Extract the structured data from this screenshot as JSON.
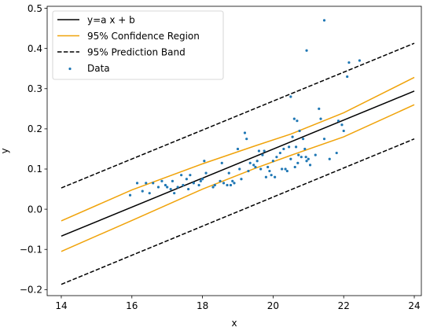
{
  "chart_data": {
    "type": "scatter",
    "title": "",
    "xlabel": "x",
    "ylabel": "y",
    "xlim": [
      13.6,
      24.2
    ],
    "ylim": [
      -0.215,
      0.505
    ],
    "xticks": [
      14,
      16,
      18,
      20,
      22,
      24
    ],
    "yticks": [
      -0.2,
      -0.1,
      0.0,
      0.1,
      0.2,
      0.3,
      0.4,
      0.5
    ],
    "xtick_labels": [
      "14",
      "16",
      "18",
      "20",
      "22",
      "24"
    ],
    "ytick_labels": [
      "−0.2",
      "−0.1",
      "0.0",
      "0.1",
      "0.2",
      "0.3",
      "0.4",
      "0.5"
    ],
    "grid": false,
    "legend_position": "upper-left",
    "colors": {
      "fit": "#000000",
      "confidence": "#f0a30a",
      "prediction": "#000000",
      "data": "#1f77b4"
    },
    "legend": [
      {
        "label": "y=a x + b",
        "style": "solid",
        "color": "#000000"
      },
      {
        "label": "95% Confidence Region",
        "style": "solid",
        "color": "#f0a30a"
      },
      {
        "label": "95% Prediction Band",
        "style": "dashed",
        "color": "#000000"
      },
      {
        "label": "Data",
        "style": "point",
        "color": "#1f77b4"
      }
    ],
    "fit_line": {
      "x": [
        14,
        24
      ],
      "y": [
        -0.067,
        0.294
      ]
    },
    "confidence_upper": {
      "x": [
        14,
        16,
        18,
        19.5,
        20.5,
        22,
        24
      ],
      "y": [
        -0.029,
        0.048,
        0.113,
        0.158,
        0.187,
        0.24,
        0.328
      ]
    },
    "confidence_lower": {
      "x": [
        14,
        16,
        18,
        19.5,
        20.5,
        22,
        24
      ],
      "y": [
        -0.105,
        -0.028,
        0.05,
        0.102,
        0.134,
        0.18,
        0.26
      ]
    },
    "prediction_upper": {
      "x": [
        14,
        24
      ],
      "y": [
        0.053,
        0.413
      ]
    },
    "prediction_lower": {
      "x": [
        14,
        24
      ],
      "y": [
        -0.187,
        0.175
      ]
    },
    "points": {
      "x": [
        15.95,
        16.15,
        16.3,
        16.4,
        16.5,
        16.6,
        16.75,
        16.85,
        16.95,
        17.0,
        17.1,
        17.15,
        17.2,
        17.3,
        17.4,
        17.45,
        17.55,
        17.6,
        17.65,
        17.75,
        17.9,
        17.95,
        18.0,
        18.05,
        18.1,
        18.3,
        18.35,
        18.5,
        18.55,
        18.6,
        18.7,
        18.75,
        18.8,
        18.85,
        18.9,
        19.0,
        19.05,
        19.1,
        19.2,
        19.25,
        19.3,
        19.35,
        19.45,
        19.5,
        19.55,
        19.6,
        19.65,
        19.7,
        19.75,
        19.8,
        19.85,
        19.9,
        19.95,
        20.0,
        20.05,
        20.1,
        20.2,
        20.25,
        20.3,
        20.35,
        20.4,
        20.45,
        20.5,
        20.55,
        20.6,
        20.62,
        20.65,
        20.68,
        20.7,
        20.72,
        20.75,
        20.8,
        20.85,
        20.9,
        20.93,
        20.95,
        21.0,
        21.05,
        21.2,
        21.3,
        21.35,
        21.45,
        21.6,
        21.8,
        21.85,
        21.95,
        22.0,
        22.1,
        22.15,
        22.45,
        21.45,
        20.95,
        20.5
      ],
      "y": [
        0.035,
        0.065,
        0.045,
        0.065,
        0.04,
        0.065,
        0.055,
        0.07,
        0.06,
        0.055,
        0.05,
        0.07,
        0.04,
        0.055,
        0.085,
        0.06,
        0.075,
        0.05,
        0.085,
        0.065,
        0.06,
        0.07,
        0.075,
        0.12,
        0.09,
        0.055,
        0.06,
        0.07,
        0.115,
        0.065,
        0.06,
        0.09,
        0.06,
        0.07,
        0.065,
        0.15,
        0.1,
        0.075,
        0.19,
        0.175,
        0.095,
        0.115,
        0.11,
        0.105,
        0.12,
        0.145,
        0.1,
        0.135,
        0.145,
        0.08,
        0.105,
        0.095,
        0.085,
        0.12,
        0.08,
        0.13,
        0.14,
        0.1,
        0.15,
        0.1,
        0.095,
        0.155,
        0.125,
        0.18,
        0.225,
        0.105,
        0.155,
        0.22,
        0.115,
        0.135,
        0.195,
        0.13,
        0.175,
        0.15,
        0.13,
        0.12,
        0.125,
        0.11,
        0.135,
        0.25,
        0.225,
        0.175,
        0.125,
        0.14,
        0.22,
        0.21,
        0.195,
        0.33,
        0.365,
        0.37,
        0.47,
        0.395,
        0.28
      ]
    }
  }
}
